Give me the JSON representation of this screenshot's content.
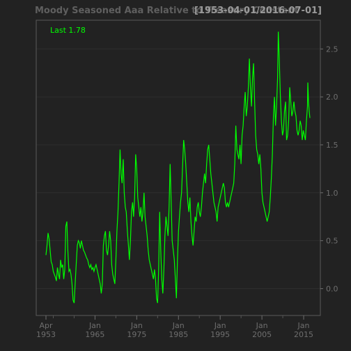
{
  "chart_data": {
    "type": "line",
    "title": "Moody Seasoned Aaa  Relative to Treasury Constant",
    "date_range_label": "[1953-04-01/2016-07-01]",
    "last_label": "Last 1.78",
    "line_color": "#00ff00",
    "background": "#222222",
    "grid": true,
    "y_axis_side": "right",
    "ylim": [
      -0.28,
      2.8
    ],
    "xlim": [
      "1953-04-01",
      "2016-07-01"
    ],
    "y_ticks": [
      "0.0",
      "0.5",
      "1.0",
      "1.5",
      "2.0",
      "2.5"
    ],
    "x_ticks": [
      {
        "label": "Apr\n1953",
        "date": "1953-04-01"
      },
      {
        "label": "Jan\n1965",
        "date": "1965-01-01"
      },
      {
        "label": "Jan\n1975",
        "date": "1975-01-01"
      },
      {
        "label": "Jan\n1985",
        "date": "1985-01-01"
      },
      {
        "label": "Jan\n1995",
        "date": "1995-01-01"
      },
      {
        "label": "Jan\n2005",
        "date": "2005-01-01"
      },
      {
        "label": "Jan\n2015",
        "date": "2015-01-01"
      }
    ],
    "series": [
      {
        "points": [
          [
            "1953-04-01",
            0.35
          ],
          [
            "1953-07-01",
            0.45
          ],
          [
            "1953-10-01",
            0.58
          ],
          [
            "1954-01-01",
            0.52
          ],
          [
            "1954-04-01",
            0.4
          ],
          [
            "1954-07-01",
            0.28
          ],
          [
            "1954-10-01",
            0.25
          ],
          [
            "1955-01-01",
            0.18
          ],
          [
            "1955-04-01",
            0.15
          ],
          [
            "1955-07-01",
            0.12
          ],
          [
            "1955-10-01",
            0.08
          ],
          [
            "1956-01-01",
            0.22
          ],
          [
            "1956-04-01",
            0.15
          ],
          [
            "1956-07-01",
            0.1
          ],
          [
            "1956-10-01",
            0.3
          ],
          [
            "1957-01-01",
            0.22
          ],
          [
            "1957-04-01",
            0.25
          ],
          [
            "1957-07-01",
            0.1
          ],
          [
            "1957-10-01",
            0.2
          ],
          [
            "1958-01-01",
            0.65
          ],
          [
            "1958-04-01",
            0.7
          ],
          [
            "1958-07-01",
            0.4
          ],
          [
            "1958-10-01",
            0.18
          ],
          [
            "1959-01-01",
            0.2
          ],
          [
            "1959-04-01",
            0.15
          ],
          [
            "1959-07-01",
            0.05
          ],
          [
            "1959-10-01",
            -0.12
          ],
          [
            "1960-01-01",
            -0.15
          ],
          [
            "1960-04-01",
            0.05
          ],
          [
            "1960-07-01",
            0.25
          ],
          [
            "1960-10-01",
            0.45
          ],
          [
            "1961-01-01",
            0.5
          ],
          [
            "1961-04-01",
            0.48
          ],
          [
            "1961-07-01",
            0.42
          ],
          [
            "1961-10-01",
            0.5
          ],
          [
            "1962-01-01",
            0.45
          ],
          [
            "1962-04-01",
            0.4
          ],
          [
            "1962-07-01",
            0.38
          ],
          [
            "1962-10-01",
            0.35
          ],
          [
            "1963-01-01",
            0.32
          ],
          [
            "1963-04-01",
            0.3
          ],
          [
            "1963-07-01",
            0.25
          ],
          [
            "1963-10-01",
            0.22
          ],
          [
            "1964-01-01",
            0.25
          ],
          [
            "1964-04-01",
            0.2
          ],
          [
            "1964-07-01",
            0.22
          ],
          [
            "1964-10-01",
            0.18
          ],
          [
            "1965-01-01",
            0.22
          ],
          [
            "1965-04-01",
            0.25
          ],
          [
            "1965-07-01",
            0.2
          ],
          [
            "1965-10-01",
            0.15
          ],
          [
            "1966-01-01",
            0.1
          ],
          [
            "1966-04-01",
            0.05
          ],
          [
            "1966-07-01",
            -0.05
          ],
          [
            "1966-10-01",
            0.05
          ],
          [
            "1967-01-01",
            0.45
          ],
          [
            "1967-04-01",
            0.55
          ],
          [
            "1967-07-01",
            0.6
          ],
          [
            "1967-10-01",
            0.4
          ],
          [
            "1968-01-01",
            0.35
          ],
          [
            "1968-04-01",
            0.45
          ],
          [
            "1968-07-01",
            0.6
          ],
          [
            "1968-10-01",
            0.5
          ],
          [
            "1969-01-01",
            0.25
          ],
          [
            "1969-04-01",
            0.15
          ],
          [
            "1969-07-01",
            0.1
          ],
          [
            "1969-10-01",
            0.05
          ],
          [
            "1970-01-01",
            0.3
          ],
          [
            "1970-04-01",
            0.6
          ],
          [
            "1970-07-01",
            0.8
          ],
          [
            "1970-10-01",
            1.1
          ],
          [
            "1971-01-01",
            1.45
          ],
          [
            "1971-04-01",
            1.2
          ],
          [
            "1971-07-01",
            1.1
          ],
          [
            "1971-10-01",
            1.35
          ],
          [
            "1972-01-01",
            1.0
          ],
          [
            "1972-04-01",
            0.85
          ],
          [
            "1972-07-01",
            0.8
          ],
          [
            "1972-10-01",
            0.6
          ],
          [
            "1973-01-01",
            0.45
          ],
          [
            "1973-04-01",
            0.3
          ],
          [
            "1973-07-01",
            0.5
          ],
          [
            "1973-10-01",
            0.8
          ],
          [
            "1974-01-01",
            0.9
          ],
          [
            "1974-04-01",
            0.75
          ],
          [
            "1974-07-01",
            0.95
          ],
          [
            "1974-10-01",
            1.4
          ],
          [
            "1975-01-01",
            1.25
          ],
          [
            "1975-04-01",
            0.95
          ],
          [
            "1975-07-01",
            0.85
          ],
          [
            "1975-10-01",
            0.75
          ],
          [
            "1976-01-01",
            0.85
          ],
          [
            "1976-04-01",
            0.7
          ],
          [
            "1976-07-01",
            0.8
          ],
          [
            "1976-10-01",
            1.0
          ],
          [
            "1977-01-01",
            0.75
          ],
          [
            "1977-04-01",
            0.65
          ],
          [
            "1977-07-01",
            0.55
          ],
          [
            "1977-10-01",
            0.4
          ],
          [
            "1978-01-01",
            0.3
          ],
          [
            "1978-04-01",
            0.25
          ],
          [
            "1978-07-01",
            0.2
          ],
          [
            "1978-10-01",
            0.15
          ],
          [
            "1979-01-01",
            0.1
          ],
          [
            "1979-04-01",
            0.2
          ],
          [
            "1979-07-01",
            0.1
          ],
          [
            "1979-10-01",
            -0.1
          ],
          [
            "1980-01-01",
            -0.15
          ],
          [
            "1980-04-01",
            0.2
          ],
          [
            "1980-07-01",
            0.8
          ],
          [
            "1980-10-01",
            0.4
          ],
          [
            "1981-01-01",
            0.1
          ],
          [
            "1981-04-01",
            -0.05
          ],
          [
            "1981-07-01",
            0.2
          ],
          [
            "1981-10-01",
            0.55
          ],
          [
            "1982-01-01",
            0.75
          ],
          [
            "1982-04-01",
            0.65
          ],
          [
            "1982-07-01",
            0.55
          ],
          [
            "1982-10-01",
            0.85
          ],
          [
            "1983-01-01",
            1.3
          ],
          [
            "1983-04-01",
            0.9
          ],
          [
            "1983-07-01",
            0.5
          ],
          [
            "1983-10-01",
            0.4
          ],
          [
            "1984-01-01",
            0.3
          ],
          [
            "1984-04-01",
            0.1
          ],
          [
            "1984-07-01",
            -0.1
          ],
          [
            "1984-10-01",
            0.3
          ],
          [
            "1985-01-01",
            0.6
          ],
          [
            "1985-04-01",
            0.75
          ],
          [
            "1985-07-01",
            0.9
          ],
          [
            "1985-10-01",
            1.0
          ],
          [
            "1986-01-01",
            1.3
          ],
          [
            "1986-04-01",
            1.55
          ],
          [
            "1986-07-01",
            1.45
          ],
          [
            "1986-10-01",
            1.3
          ],
          [
            "1987-01-01",
            1.1
          ],
          [
            "1987-04-01",
            0.9
          ],
          [
            "1987-07-01",
            0.8
          ],
          [
            "1987-10-01",
            0.95
          ],
          [
            "1988-01-01",
            0.7
          ],
          [
            "1988-04-01",
            0.55
          ],
          [
            "1988-07-01",
            0.45
          ],
          [
            "1988-10-01",
            0.6
          ],
          [
            "1989-01-01",
            0.75
          ],
          [
            "1989-04-01",
            0.7
          ],
          [
            "1989-07-01",
            0.85
          ],
          [
            "1989-10-01",
            0.9
          ],
          [
            "1990-01-01",
            0.8
          ],
          [
            "1990-04-01",
            0.75
          ],
          [
            "1990-07-01",
            0.85
          ],
          [
            "1990-10-01",
            1.0
          ],
          [
            "1991-01-01",
            1.1
          ],
          [
            "1991-04-01",
            1.2
          ],
          [
            "1991-07-01",
            1.1
          ],
          [
            "1991-10-01",
            1.3
          ],
          [
            "1992-01-01",
            1.45
          ],
          [
            "1992-04-01",
            1.5
          ],
          [
            "1992-07-01",
            1.35
          ],
          [
            "1992-10-01",
            1.2
          ],
          [
            "1993-01-01",
            1.1
          ],
          [
            "1993-04-01",
            1.0
          ],
          [
            "1993-07-01",
            0.9
          ],
          [
            "1993-10-01",
            0.85
          ],
          [
            "1994-01-01",
            0.8
          ],
          [
            "1994-04-01",
            0.7
          ],
          [
            "1994-07-01",
            0.85
          ],
          [
            "1994-10-01",
            0.9
          ],
          [
            "1995-01-01",
            0.95
          ],
          [
            "1995-04-01",
            1.0
          ],
          [
            "1995-07-01",
            1.05
          ],
          [
            "1995-10-01",
            1.1
          ],
          [
            "1996-01-01",
            1.05
          ],
          [
            "1996-04-01",
            0.9
          ],
          [
            "1996-07-01",
            0.85
          ],
          [
            "1996-10-01",
            0.9
          ],
          [
            "1997-01-01",
            0.85
          ],
          [
            "1997-04-01",
            0.9
          ],
          [
            "1997-07-01",
            0.95
          ],
          [
            "1997-10-01",
            1.0
          ],
          [
            "1998-01-01",
            1.05
          ],
          [
            "1998-04-01",
            1.1
          ],
          [
            "1998-07-01",
            1.3
          ],
          [
            "1998-10-01",
            1.7
          ],
          [
            "1999-01-01",
            1.45
          ],
          [
            "1999-04-01",
            1.4
          ],
          [
            "1999-07-01",
            1.35
          ],
          [
            "1999-10-01",
            1.5
          ],
          [
            "2000-01-01",
            1.3
          ],
          [
            "2000-04-01",
            1.6
          ],
          [
            "2000-07-01",
            1.7
          ],
          [
            "2000-10-01",
            1.9
          ],
          [
            "2001-01-01",
            2.05
          ],
          [
            "2001-04-01",
            1.8
          ],
          [
            "2001-07-01",
            1.9
          ],
          [
            "2001-10-01",
            2.1
          ],
          [
            "2002-01-01",
            2.4
          ],
          [
            "2002-04-01",
            2.1
          ],
          [
            "2002-07-01",
            1.9
          ],
          [
            "2002-10-01",
            2.2
          ],
          [
            "2003-01-01",
            2.35
          ],
          [
            "2003-04-01",
            1.95
          ],
          [
            "2003-07-01",
            1.6
          ],
          [
            "2003-10-01",
            1.45
          ],
          [
            "2004-01-01",
            1.4
          ],
          [
            "2004-04-01",
            1.3
          ],
          [
            "2004-07-01",
            1.4
          ],
          [
            "2004-10-01",
            1.25
          ],
          [
            "2005-01-01",
            1.0
          ],
          [
            "2005-04-01",
            0.9
          ],
          [
            "2005-07-01",
            0.85
          ],
          [
            "2005-10-01",
            0.8
          ],
          [
            "2006-01-01",
            0.75
          ],
          [
            "2006-04-01",
            0.7
          ],
          [
            "2006-07-01",
            0.75
          ],
          [
            "2006-10-01",
            0.8
          ],
          [
            "2007-01-01",
            0.95
          ],
          [
            "2007-04-01",
            1.15
          ],
          [
            "2007-07-01",
            1.4
          ],
          [
            "2007-10-01",
            1.8
          ],
          [
            "2008-01-01",
            2.0
          ],
          [
            "2008-04-01",
            1.7
          ],
          [
            "2008-07-01",
            1.9
          ],
          [
            "2008-10-01",
            2.2
          ],
          [
            "2008-12-01",
            2.68
          ],
          [
            "2009-03-01",
            2.4
          ],
          [
            "2009-06-01",
            2.0
          ],
          [
            "2009-09-01",
            1.75
          ],
          [
            "2009-12-01",
            1.6
          ],
          [
            "2010-03-01",
            1.65
          ],
          [
            "2010-06-01",
            1.85
          ],
          [
            "2010-09-01",
            1.95
          ],
          [
            "2010-12-01",
            1.55
          ],
          [
            "2011-03-01",
            1.6
          ],
          [
            "2011-06-01",
            1.75
          ],
          [
            "2011-09-01",
            2.1
          ],
          [
            "2011-12-01",
            1.95
          ],
          [
            "2012-03-01",
            1.8
          ],
          [
            "2012-06-01",
            1.85
          ],
          [
            "2012-09-01",
            1.95
          ],
          [
            "2012-12-01",
            1.85
          ],
          [
            "2013-03-01",
            1.8
          ],
          [
            "2013-06-01",
            1.65
          ],
          [
            "2013-09-01",
            1.6
          ],
          [
            "2013-12-01",
            1.65
          ],
          [
            "2014-03-01",
            1.75
          ],
          [
            "2014-06-01",
            1.7
          ],
          [
            "2014-09-01",
            1.55
          ],
          [
            "2014-12-01",
            1.65
          ],
          [
            "2015-03-01",
            1.6
          ],
          [
            "2015-06-01",
            1.55
          ],
          [
            "2015-09-01",
            1.75
          ],
          [
            "2015-12-01",
            1.9
          ],
          [
            "2016-01-01",
            2.15
          ],
          [
            "2016-03-01",
            1.95
          ],
          [
            "2016-05-01",
            1.85
          ],
          [
            "2016-07-01",
            1.78
          ]
        ]
      }
    ]
  }
}
